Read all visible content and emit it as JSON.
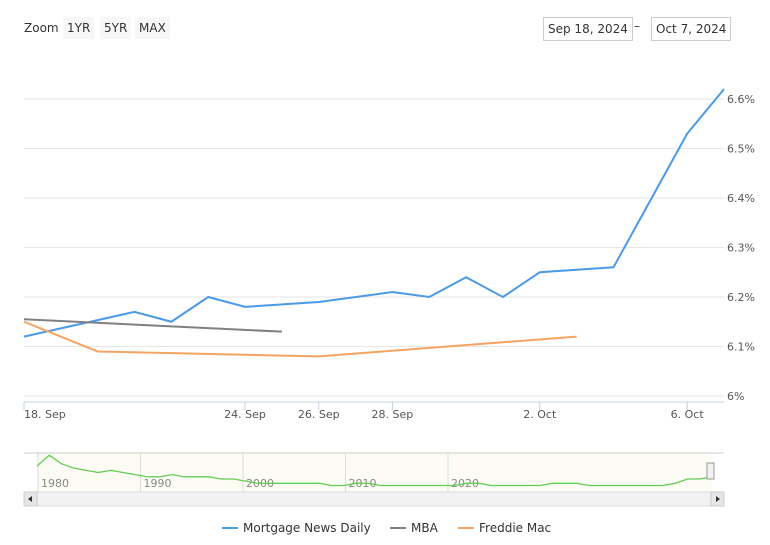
{
  "toolbar": {
    "zoom_label": "Zoom",
    "buttons": [
      "1YR",
      "5YR",
      "MAX"
    ],
    "from_date": "Sep 18, 2024",
    "to_date": "Oct 7, 2024",
    "separator": "–"
  },
  "chart_data": {
    "type": "line",
    "xlim": [
      "2024-09-18",
      "2024-10-07"
    ],
    "ylim": [
      6.0,
      6.65
    ],
    "y_ticks": [
      "6%",
      "6.1%",
      "6.2%",
      "6.3%",
      "6.4%",
      "6.5%",
      "6.6%"
    ],
    "y_tick_values": [
      6.0,
      6.1,
      6.2,
      6.3,
      6.4,
      6.5,
      6.6
    ],
    "x_ticks": [
      {
        "label": "18. Sep",
        "date": "2024-09-18"
      },
      {
        "label": "24. Sep",
        "date": "2024-09-24"
      },
      {
        "label": "26. Sep",
        "date": "2024-09-26"
      },
      {
        "label": "28. Sep",
        "date": "2024-09-28"
      },
      {
        "label": "2. Oct",
        "date": "2024-10-02"
      },
      {
        "label": "6. Oct",
        "date": "2024-10-06"
      }
    ],
    "grid": true,
    "legend_position": "bottom",
    "series": [
      {
        "name": "Mortgage News Daily",
        "color": "#4a9ae6",
        "points": [
          [
            "2024-09-18",
            6.12
          ],
          [
            "2024-09-21",
            6.17
          ],
          [
            "2024-09-22",
            6.15
          ],
          [
            "2024-09-23",
            6.2
          ],
          [
            "2024-09-24",
            6.18
          ],
          [
            "2024-09-26",
            6.19
          ],
          [
            "2024-09-28",
            6.21
          ],
          [
            "2024-09-29",
            6.2
          ],
          [
            "2024-09-30",
            6.24
          ],
          [
            "2024-10-01",
            6.2
          ],
          [
            "2024-10-02",
            6.25
          ],
          [
            "2024-10-04",
            6.26
          ],
          [
            "2024-10-06",
            6.53
          ],
          [
            "2024-10-07",
            6.62
          ]
        ]
      },
      {
        "name": "MBA",
        "color": "#808080",
        "points": [
          [
            "2024-09-18",
            6.155
          ],
          [
            "2024-09-25",
            6.13
          ]
        ]
      },
      {
        "name": "Freddie Mac",
        "color": "#f4a460",
        "points": [
          [
            "2024-09-18",
            6.15
          ],
          [
            "2024-09-20",
            6.09
          ],
          [
            "2024-09-26",
            6.08
          ],
          [
            "2024-10-03",
            6.12
          ]
        ]
      }
    ],
    "navigator": {
      "x_ticks": [
        "1980",
        "1990",
        "2000",
        "2010",
        "2020"
      ],
      "color": "#66cc55",
      "values": [
        12,
        17,
        13,
        11,
        10,
        9,
        10,
        9,
        8,
        7,
        7,
        8,
        7,
        7,
        7,
        6,
        6,
        5,
        4,
        4,
        4,
        4,
        4,
        4,
        3,
        3,
        4,
        4,
        3,
        3,
        3,
        3,
        3,
        3,
        3,
        4,
        4,
        3,
        3,
        3,
        3,
        3,
        4,
        4,
        4,
        3,
        3,
        3,
        3,
        3,
        3,
        3,
        4,
        6,
        6,
        7
      ]
    }
  }
}
